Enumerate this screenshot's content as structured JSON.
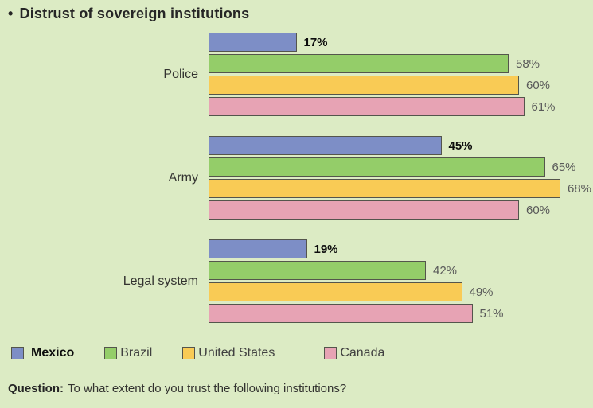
{
  "title": {
    "bullet": "•",
    "text": "Distrust of sovereign institutions"
  },
  "chart_data": {
    "type": "bar",
    "orientation": "horizontal",
    "title": "Distrust of sovereign institutions",
    "categories": [
      "Police",
      "Army",
      "Legal system"
    ],
    "series": [
      {
        "name": "Mexico",
        "color": "#7d8ec6",
        "emphasis": true,
        "values": [
          17,
          45,
          19
        ]
      },
      {
        "name": "Brazil",
        "color": "#94cd69",
        "emphasis": false,
        "values": [
          58,
          65,
          42
        ]
      },
      {
        "name": "United States",
        "color": "#f9cb55",
        "emphasis": false,
        "values": [
          60,
          68,
          49
        ]
      },
      {
        "name": "Canada",
        "color": "#e7a3b4",
        "emphasis": false,
        "values": [
          61,
          60,
          51
        ]
      }
    ],
    "value_suffix": "%",
    "xlim": [
      0,
      100
    ],
    "grid": false,
    "legend_position": "bottom",
    "data_labels": "outside-end"
  },
  "theme": {
    "background": "#dcebc4",
    "bar_border": "#54554c",
    "value_label_color": "#595959",
    "emphasis_label_color": "#0d0d0d"
  },
  "question": {
    "label": "Question:",
    "text": "To what extent do you trust the following institutions?"
  }
}
